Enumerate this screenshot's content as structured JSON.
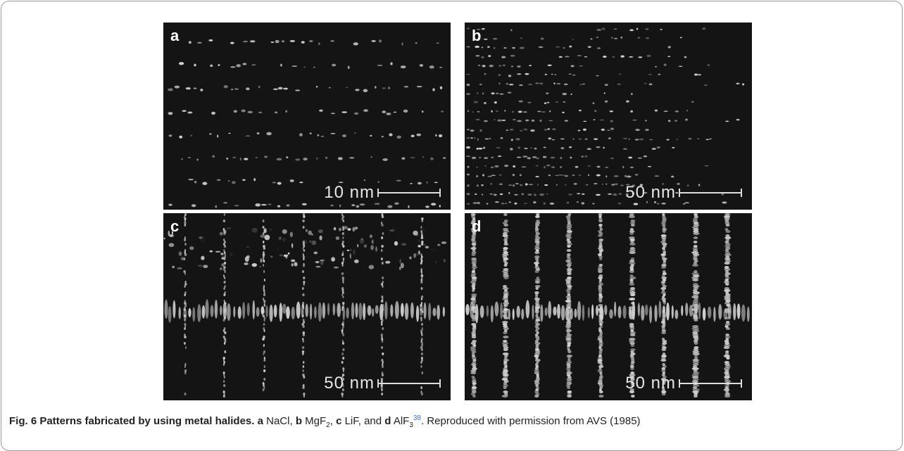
{
  "panels": [
    {
      "label": "a",
      "scale_label": "10 nm"
    },
    {
      "label": "b",
      "scale_label": "50 nm"
    },
    {
      "label": "c",
      "scale_label": "50 nm"
    },
    {
      "label": "d",
      "scale_label": "50 nm"
    }
  ],
  "caption": {
    "title": "Fig. 6 Patterns fabricated by using metal halides.",
    "items": [
      {
        "label": "a",
        "text": "NaCl,"
      },
      {
        "label": "b",
        "text": "MgF",
        "subscript": "2",
        "suffix": ","
      },
      {
        "label": "c",
        "text": "LiF, and"
      },
      {
        "label": "d",
        "text": "AlF",
        "subscript": "3"
      }
    ],
    "reference": "38",
    "credit": ". Reproduced with permission from AVS (1985)"
  }
}
